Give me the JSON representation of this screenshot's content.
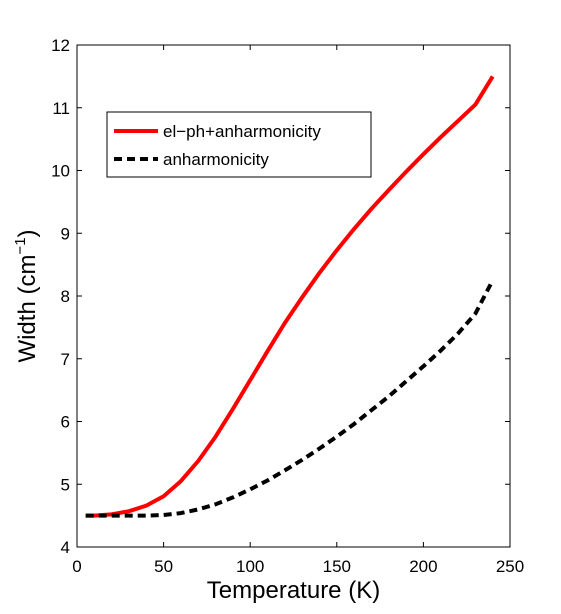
{
  "chart_data": {
    "type": "line",
    "xlabel": "Temperature (K)",
    "ylabel": "Width (cm",
    "ylabel_sup": "−1",
    "ylabel_close": ")",
    "xlim": [
      0,
      250
    ],
    "ylim": [
      4,
      12
    ],
    "xticks": [
      0,
      50,
      100,
      150,
      200,
      250
    ],
    "yticks": [
      4,
      5,
      6,
      7,
      8,
      9,
      10,
      11,
      12
    ],
    "grid": false,
    "legend_position": "top-left",
    "series": [
      {
        "name": "el−ph+anharmonicity",
        "color": "#ff0000",
        "style": "solid",
        "x": [
          5,
          10,
          20,
          30,
          40,
          50,
          60,
          70,
          80,
          90,
          100,
          110,
          120,
          130,
          140,
          150,
          160,
          170,
          180,
          190,
          200,
          210,
          220,
          230,
          240
        ],
        "y": [
          4.5,
          4.5,
          4.52,
          4.57,
          4.66,
          4.81,
          5.05,
          5.37,
          5.76,
          6.2,
          6.66,
          7.12,
          7.57,
          7.98,
          8.37,
          8.73,
          9.07,
          9.39,
          9.69,
          9.98,
          10.26,
          10.53,
          10.79,
          11.05,
          11.5
        ]
      },
      {
        "name": "anharmonicity",
        "color": "#000000",
        "style": "dashed",
        "x": [
          5,
          20,
          40,
          50,
          60,
          70,
          80,
          90,
          100,
          110,
          120,
          130,
          140,
          150,
          160,
          170,
          180,
          190,
          200,
          210,
          220,
          230,
          240
        ],
        "y": [
          4.5,
          4.5,
          4.5,
          4.51,
          4.54,
          4.6,
          4.68,
          4.79,
          4.92,
          5.06,
          5.22,
          5.39,
          5.57,
          5.76,
          5.96,
          6.18,
          6.4,
          6.64,
          6.88,
          7.13,
          7.4,
          7.72,
          8.25
        ]
      }
    ]
  }
}
